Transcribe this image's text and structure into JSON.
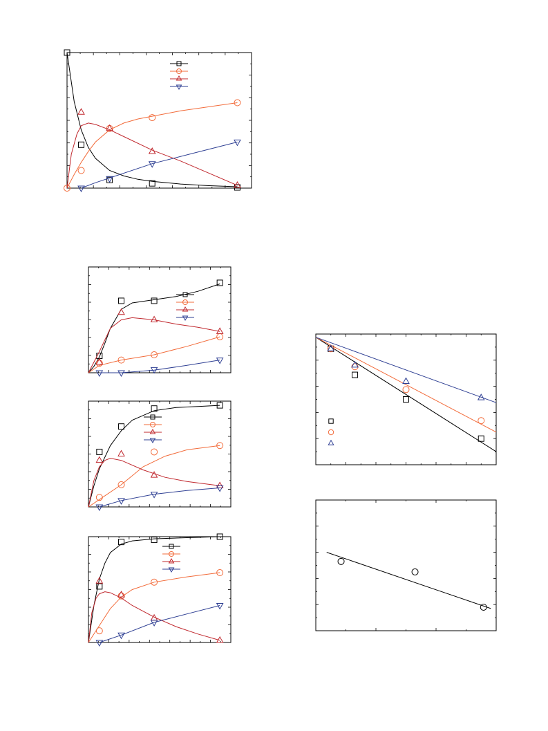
{
  "colors": {
    "black": "#000000",
    "orange": "#f26b3a",
    "red": "#c0282e",
    "blue": "#2e3f93",
    "frame": "#000000"
  },
  "chart_data": [
    {
      "id": "panel-a",
      "type": "line",
      "title": "",
      "xlabel": "",
      "ylabel": "",
      "xlim": [
        0,
        13
      ],
      "ylim": [
        0,
        1
      ],
      "x_major_ticks": 7,
      "y_major_ticks": 6,
      "legend": "top-right",
      "series": [
        {
          "marker": "square",
          "color": "#000000",
          "points": [
            [
              0,
              1.0
            ],
            [
              1,
              0.32
            ],
            [
              3,
              0.06
            ],
            [
              6,
              0.035
            ],
            [
              12,
              0.005
            ]
          ],
          "curve": [
            [
              0,
              1.0
            ],
            [
              0.5,
              0.64
            ],
            [
              1,
              0.43
            ],
            [
              1.5,
              0.3
            ],
            [
              2,
              0.22
            ],
            [
              3,
              0.13
            ],
            [
              4,
              0.09
            ],
            [
              5,
              0.065
            ],
            [
              6,
              0.05
            ],
            [
              8,
              0.03
            ],
            [
              10,
              0.018
            ],
            [
              12,
              0.01
            ]
          ]
        },
        {
          "marker": "circle",
          "color": "#f26b3a",
          "points": [
            [
              0,
              0.0
            ],
            [
              1,
              0.13
            ],
            [
              3,
              0.44
            ],
            [
              6,
              0.52
            ],
            [
              12,
              0.63
            ]
          ],
          "curve": [
            [
              0,
              0.0
            ],
            [
              0.5,
              0.1
            ],
            [
              1,
              0.19
            ],
            [
              1.5,
              0.27
            ],
            [
              2,
              0.34
            ],
            [
              3,
              0.43
            ],
            [
              4,
              0.48
            ],
            [
              5,
              0.51
            ],
            [
              6,
              0.53
            ],
            [
              8,
              0.57
            ],
            [
              10,
              0.6
            ],
            [
              12,
              0.63
            ]
          ]
        },
        {
          "marker": "triangle-up",
          "color": "#c0282e",
          "points": [
            [
              1,
              0.56
            ],
            [
              3,
              0.44
            ],
            [
              6,
              0.27
            ],
            [
              12,
              0.02
            ]
          ],
          "curve": [
            [
              0,
              0.0
            ],
            [
              0.3,
              0.25
            ],
            [
              0.7,
              0.4
            ],
            [
              1,
              0.46
            ],
            [
              1.5,
              0.48
            ],
            [
              2,
              0.47
            ],
            [
              3,
              0.43
            ],
            [
              4,
              0.38
            ],
            [
              6,
              0.28
            ],
            [
              8,
              0.2
            ],
            [
              10,
              0.11
            ],
            [
              12,
              0.02
            ]
          ]
        },
        {
          "marker": "triangle-down",
          "color": "#2e3f93",
          "points": [
            [
              1,
              0.0
            ],
            [
              3,
              0.07
            ],
            [
              6,
              0.18
            ],
            [
              12,
              0.34
            ]
          ],
          "curve": [
            [
              1,
              0.0
            ],
            [
              2,
              0.04
            ],
            [
              3,
              0.075
            ],
            [
              6,
              0.18
            ],
            [
              9,
              0.26
            ],
            [
              12,
              0.34
            ]
          ]
        }
      ]
    },
    {
      "id": "panel-b",
      "type": "line",
      "title": "",
      "xlabel": "",
      "ylabel": "",
      "xlim": [
        0,
        13
      ],
      "ylim": [
        0,
        1
      ],
      "x_major_ticks": 7,
      "y_major_ticks": 6,
      "legend": "top-right",
      "series": [
        {
          "marker": "square",
          "color": "#000000",
          "points": [
            [
              1,
              0.16
            ],
            [
              3,
              0.68
            ],
            [
              6,
              0.68
            ],
            [
              12,
              0.85
            ]
          ],
          "curve": [
            [
              0,
              0.0
            ],
            [
              0.5,
              0.06
            ],
            [
              1,
              0.15
            ],
            [
              1.5,
              0.28
            ],
            [
              2,
              0.42
            ],
            [
              3,
              0.6
            ],
            [
              4,
              0.66
            ],
            [
              6,
              0.69
            ],
            [
              8,
              0.72
            ],
            [
              10,
              0.77
            ],
            [
              12,
              0.84
            ]
          ]
        },
        {
          "marker": "circle",
          "color": "#f26b3a",
          "points": [
            [
              1,
              0.09
            ],
            [
              3,
              0.12
            ],
            [
              6,
              0.17
            ],
            [
              12,
              0.34
            ]
          ],
          "curve": [
            [
              0,
              0.0
            ],
            [
              1,
              0.07
            ],
            [
              3,
              0.12
            ],
            [
              6,
              0.17
            ],
            [
              9,
              0.25
            ],
            [
              12,
              0.34
            ]
          ]
        },
        {
          "marker": "triangle-up",
          "color": "#c0282e",
          "points": [
            [
              1,
              0.1
            ],
            [
              3,
              0.57
            ],
            [
              6,
              0.5
            ],
            [
              12,
              0.39
            ]
          ],
          "curve": [
            [
              0,
              0.0
            ],
            [
              1,
              0.2
            ],
            [
              2,
              0.42
            ],
            [
              3,
              0.5
            ],
            [
              4,
              0.52
            ],
            [
              6,
              0.5
            ],
            [
              8,
              0.46
            ],
            [
              10,
              0.43
            ],
            [
              12,
              0.39
            ]
          ]
        },
        {
          "marker": "triangle-down",
          "color": "#2e3f93",
          "points": [
            [
              1,
              0.0
            ],
            [
              3,
              0.0
            ],
            [
              6,
              0.03
            ],
            [
              12,
              0.12
            ]
          ],
          "curve": [
            [
              1,
              0.0
            ],
            [
              3,
              0.0
            ],
            [
              6,
              0.025
            ],
            [
              9,
              0.07
            ],
            [
              12,
              0.12
            ]
          ]
        }
      ]
    },
    {
      "id": "panel-c",
      "type": "line",
      "title": "",
      "xlabel": "",
      "ylabel": "",
      "xlim": [
        0,
        13
      ],
      "ylim": [
        0,
        1
      ],
      "x_major_ticks": 7,
      "y_major_ticks": 6,
      "legend": "top-right",
      "series": [
        {
          "marker": "square",
          "color": "#000000",
          "points": [
            [
              1,
              0.52
            ],
            [
              3,
              0.76
            ],
            [
              6,
              0.93
            ],
            [
              12,
              0.96
            ]
          ],
          "curve": [
            [
              0,
              0.0
            ],
            [
              0.5,
              0.2
            ],
            [
              1,
              0.36
            ],
            [
              2,
              0.58
            ],
            [
              3,
              0.72
            ],
            [
              4,
              0.82
            ],
            [
              6,
              0.91
            ],
            [
              8,
              0.94
            ],
            [
              10,
              0.95
            ],
            [
              12,
              0.96
            ]
          ]
        },
        {
          "marker": "circle",
          "color": "#f26b3a",
          "points": [
            [
              1,
              0.09
            ],
            [
              3,
              0.21
            ],
            [
              6,
              0.52
            ],
            [
              12,
              0.58
            ]
          ],
          "curve": [
            [
              0,
              0.0
            ],
            [
              1,
              0.07
            ],
            [
              3,
              0.21
            ],
            [
              5,
              0.38
            ],
            [
              7,
              0.48
            ],
            [
              9,
              0.54
            ],
            [
              12,
              0.58
            ]
          ]
        },
        {
          "marker": "triangle-up",
          "color": "#c0282e",
          "points": [
            [
              1,
              0.44
            ],
            [
              3,
              0.5
            ],
            [
              6,
              0.3
            ],
            [
              12,
              0.2
            ]
          ],
          "curve": [
            [
              0,
              0.0
            ],
            [
              0.5,
              0.25
            ],
            [
              1,
              0.38
            ],
            [
              1.5,
              0.44
            ],
            [
              2,
              0.46
            ],
            [
              3,
              0.44
            ],
            [
              5,
              0.35
            ],
            [
              7,
              0.28
            ],
            [
              9,
              0.24
            ],
            [
              12,
              0.2
            ]
          ]
        },
        {
          "marker": "triangle-down",
          "color": "#2e3f93",
          "points": [
            [
              1,
              0.0
            ],
            [
              3,
              0.06
            ],
            [
              6,
              0.12
            ],
            [
              12,
              0.18
            ]
          ],
          "curve": [
            [
              1,
              0.0
            ],
            [
              3,
              0.06
            ],
            [
              6,
              0.12
            ],
            [
              9,
              0.155
            ],
            [
              12,
              0.18
            ]
          ]
        }
      ]
    },
    {
      "id": "panel-d",
      "type": "line",
      "title": "",
      "xlabel": "",
      "ylabel": "",
      "xlim": [
        0,
        13
      ],
      "ylim": [
        0,
        1
      ],
      "x_major_ticks": 7,
      "y_major_ticks": 6,
      "legend": "top-right",
      "series": [
        {
          "marker": "square",
          "color": "#000000",
          "points": [
            [
              1,
              0.53
            ],
            [
              3,
              0.95
            ],
            [
              6,
              0.97
            ],
            [
              12,
              1.0
            ]
          ],
          "curve": [
            [
              0,
              0.0
            ],
            [
              0.5,
              0.35
            ],
            [
              1,
              0.6
            ],
            [
              1.5,
              0.75
            ],
            [
              2,
              0.85
            ],
            [
              3,
              0.93
            ],
            [
              4,
              0.96
            ],
            [
              6,
              0.98
            ],
            [
              9,
              0.99
            ],
            [
              12,
              1.0
            ]
          ]
        },
        {
          "marker": "circle",
          "color": "#f26b3a",
          "points": [
            [
              1,
              0.11
            ],
            [
              3,
              0.44
            ],
            [
              6,
              0.57
            ],
            [
              12,
              0.66
            ]
          ],
          "curve": [
            [
              0,
              0.0
            ],
            [
              1,
              0.16
            ],
            [
              2,
              0.32
            ],
            [
              3,
              0.43
            ],
            [
              4,
              0.5
            ],
            [
              6,
              0.57
            ],
            [
              9,
              0.62
            ],
            [
              12,
              0.66
            ]
          ]
        },
        {
          "marker": "triangle-up",
          "color": "#c0282e",
          "points": [
            [
              1,
              0.58
            ],
            [
              3,
              0.45
            ],
            [
              6,
              0.23
            ],
            [
              12,
              0.02
            ]
          ],
          "curve": [
            [
              0,
              0.0
            ],
            [
              0.3,
              0.28
            ],
            [
              0.7,
              0.42
            ],
            [
              1,
              0.46
            ],
            [
              1.5,
              0.48
            ],
            [
              2,
              0.47
            ],
            [
              3,
              0.42
            ],
            [
              4,
              0.35
            ],
            [
              6,
              0.24
            ],
            [
              8,
              0.15
            ],
            [
              10,
              0.08
            ],
            [
              12,
              0.02
            ]
          ]
        },
        {
          "marker": "triangle-down",
          "color": "#2e3f93",
          "points": [
            [
              1,
              0.0
            ],
            [
              3,
              0.07
            ],
            [
              6,
              0.19
            ],
            [
              12,
              0.35
            ]
          ],
          "curve": [
            [
              1,
              0.0
            ],
            [
              3,
              0.07
            ],
            [
              6,
              0.19
            ],
            [
              9,
              0.27
            ],
            [
              12,
              0.35
            ]
          ]
        }
      ]
    },
    {
      "id": "panel-e",
      "type": "scatter",
      "title": "",
      "xlabel": "",
      "ylabel": "",
      "xlim": [
        0,
        12
      ],
      "ylim": [
        -4,
        0
      ],
      "x_major_ticks": 6,
      "y_major_ticks": 5,
      "legend": "left",
      "series": [
        {
          "marker": "square",
          "color": "#000000",
          "points": [
            [
              1,
              -0.45
            ],
            [
              2.6,
              -1.25
            ],
            [
              6,
              -2.0
            ],
            [
              11,
              -3.2
            ]
          ],
          "fit": [
            [
              0,
              -0.1
            ],
            [
              12,
              -3.6
            ]
          ]
        },
        {
          "marker": "circle",
          "color": "#f26b3a",
          "points": [
            [
              1,
              -0.45
            ],
            [
              2.6,
              -1.0
            ],
            [
              6,
              -1.7
            ],
            [
              11,
              -2.65
            ]
          ],
          "fit": [
            [
              0,
              -0.1
            ],
            [
              12,
              -3.0
            ]
          ]
        },
        {
          "marker": "triangle-up",
          "color": "#2e3f93",
          "points": [
            [
              1,
              -0.45
            ],
            [
              2.6,
              -0.95
            ],
            [
              6,
              -1.45
            ],
            [
              11,
              -1.95
            ]
          ],
          "fit": [
            [
              0,
              -0.1
            ],
            [
              12,
              -2.1
            ]
          ]
        }
      ]
    },
    {
      "id": "panel-f",
      "type": "scatter",
      "title": "",
      "xlabel": "",
      "ylabel": "",
      "xlim": [
        0,
        10
      ],
      "ylim": [
        0,
        1
      ],
      "x_major_ticks": 3,
      "y_major_ticks": 5,
      "legend": "none",
      "series": [
        {
          "marker": "circle",
          "color": "#000000",
          "points": [
            [
              1.4,
              0.53
            ],
            [
              5.5,
              0.45
            ],
            [
              9.3,
              0.18
            ]
          ],
          "fit": [
            [
              0.6,
              0.6
            ],
            [
              9.7,
              0.17
            ]
          ]
        }
      ]
    }
  ]
}
